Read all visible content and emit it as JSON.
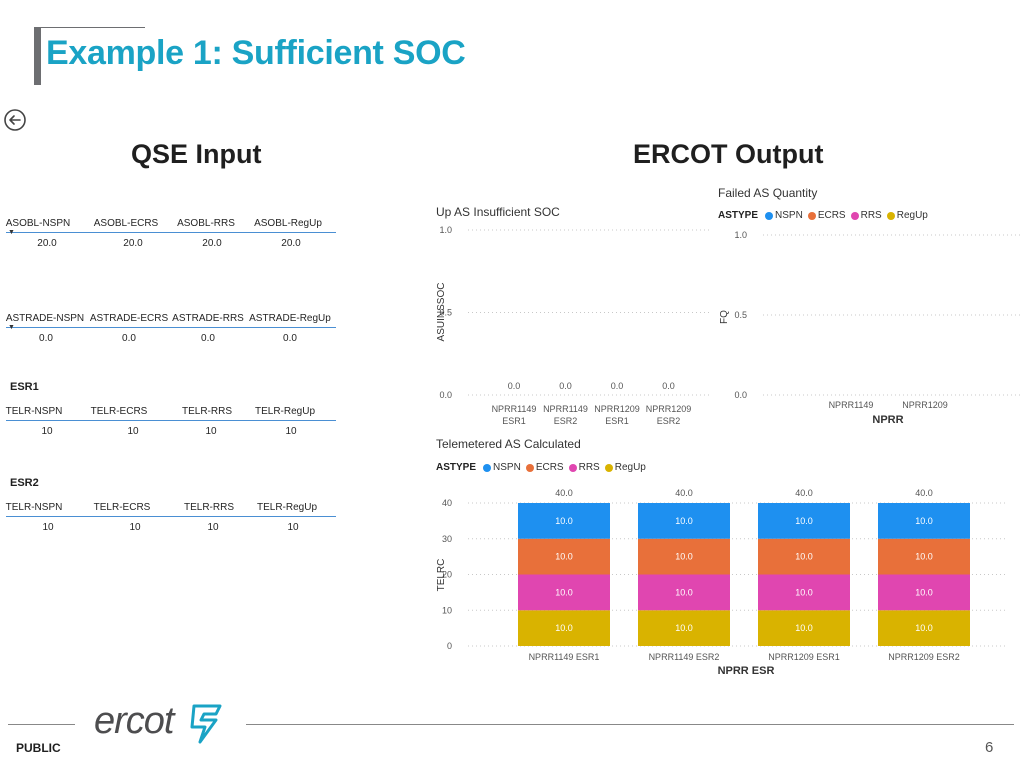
{
  "slide": {
    "title": "Example 1: Sufficient SOC",
    "page_number": "6",
    "footer_label": "PUBLIC",
    "logo_text": "ercot"
  },
  "qse": {
    "heading": "QSE Input",
    "asobl": {
      "headers": [
        "ASOBL-NSPN",
        "ASOBL-ECRS",
        "ASOBL-RRS",
        "ASOBL-RegUp"
      ],
      "values": [
        "20.0",
        "20.0",
        "20.0",
        "20.0"
      ]
    },
    "astrade": {
      "headers": [
        "ASTRADE-NSPN",
        "ASTRADE-ECRS",
        "ASTRADE-RRS",
        "ASTRADE-RegUp"
      ],
      "values": [
        "0.0",
        "0.0",
        "0.0",
        "0.0"
      ]
    },
    "esr1": {
      "label": "ESR1",
      "headers": [
        "TELR-NSPN",
        "TELR-ECRS",
        "TELR-RRS",
        "TELR-RegUp"
      ],
      "values": [
        "10",
        "10",
        "10",
        "10"
      ]
    },
    "esr2": {
      "label": "ESR2",
      "headers": [
        "TELR-NSPN",
        "TELR-ECRS",
        "TELR-RRS",
        "TELR-RegUp"
      ],
      "values": [
        "10",
        "10",
        "10",
        "10"
      ]
    }
  },
  "ercot": {
    "heading": "ERCOT Output"
  },
  "legend": {
    "title": "ASTYPE",
    "items": [
      {
        "name": "NSPN",
        "color": "#1e90f0"
      },
      {
        "name": "ECRS",
        "color": "#e8703a"
      },
      {
        "name": "RRS",
        "color": "#e046b0"
      },
      {
        "name": "RegUp",
        "color": "#d9b300"
      }
    ]
  },
  "chart_data": [
    {
      "type": "bar",
      "title": "Up AS Insufficient SOC",
      "ylabel": "ASUINSSOC",
      "xlabel": "",
      "categories": [
        "NPRR1149 ESR1",
        "NPRR1149 ESR2",
        "NPRR1209 ESR1",
        "NPRR1209 ESR2"
      ],
      "category_lines": [
        [
          "NPRR1149",
          "ESR1"
        ],
        [
          "NPRR1149",
          "ESR2"
        ],
        [
          "NPRR1209",
          "ESR1"
        ],
        [
          "NPRR1209",
          "ESR2"
        ]
      ],
      "values": [
        0.0,
        0.0,
        0.0,
        0.0
      ],
      "data_labels": [
        "0.0",
        "0.0",
        "0.0",
        "0.0"
      ],
      "ylim": [
        0,
        1
      ],
      "yticks": [
        "0.0",
        "0.5",
        "1.0"
      ],
      "grid": true
    },
    {
      "type": "bar",
      "title": "Failed AS Quantity",
      "ylabel": "FQ",
      "xlabel": "NPRR",
      "categories": [
        "NPRR1149",
        "NPRR1209"
      ],
      "series": [
        {
          "name": "NSPN",
          "values": [
            null,
            null
          ]
        },
        {
          "name": "ECRS",
          "values": [
            null,
            null
          ]
        },
        {
          "name": "RRS",
          "values": [
            null,
            null
          ]
        },
        {
          "name": "RegUp",
          "values": [
            null,
            null
          ]
        }
      ],
      "ylim": [
        0,
        1
      ],
      "yticks": [
        "0.0",
        "0.5",
        "1.0"
      ],
      "legend": "top-left",
      "grid": true
    },
    {
      "type": "bar",
      "stacked": true,
      "title": "Telemetered AS Calculated",
      "ylabel": "TELRC",
      "xlabel": "NPRR ESR",
      "categories": [
        "NPRR1149 ESR1",
        "NPRR1149 ESR2",
        "NPRR1209 ESR1",
        "NPRR1209 ESR2"
      ],
      "series": [
        {
          "name": "NSPN",
          "values": [
            10.0,
            10.0,
            10.0,
            10.0
          ]
        },
        {
          "name": "ECRS",
          "values": [
            10.0,
            10.0,
            10.0,
            10.0
          ]
        },
        {
          "name": "RRS",
          "values": [
            10.0,
            10.0,
            10.0,
            10.0
          ]
        },
        {
          "name": "RegUp",
          "values": [
            10.0,
            10.0,
            10.0,
            10.0
          ]
        }
      ],
      "segment_labels": "10.0",
      "totals": [
        "40.0",
        "40.0",
        "40.0",
        "40.0"
      ],
      "ylim": [
        0,
        40
      ],
      "yticks": [
        "0",
        "10",
        "20",
        "30",
        "40"
      ],
      "legend": "top-left",
      "grid": true
    }
  ]
}
